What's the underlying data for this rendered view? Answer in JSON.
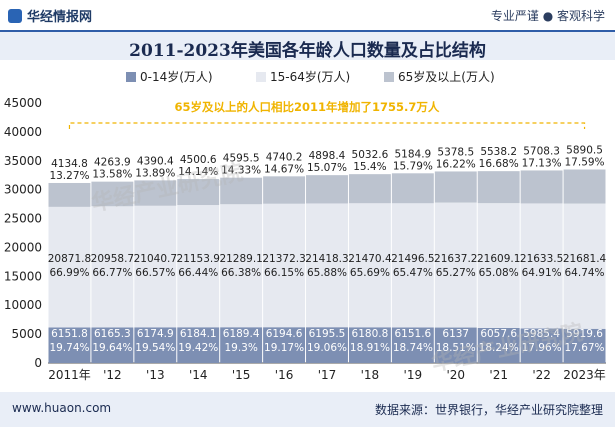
{
  "header": {
    "brand": "华经情报网",
    "slogan": "专业严谨 ● 客观科学"
  },
  "footer": {
    "site": "www.huaon.com",
    "source": "数据来源：世界银行，华经产业研究院整理"
  },
  "chart_data": {
    "type": "bar",
    "stacked": true,
    "title": "2011-2023年美国各年龄人口数量及占比结构",
    "categories": [
      "2011年",
      "'12",
      "'13",
      "'14",
      "'15",
      "'16",
      "'17",
      "'18",
      "'19",
      "'20",
      "'21",
      "'22",
      "2023年"
    ],
    "ylim": [
      0,
      45000
    ],
    "yticks": [
      0,
      5000,
      10000,
      15000,
      20000,
      25000,
      30000,
      35000,
      40000,
      45000
    ],
    "grid": false,
    "legend_position": "top",
    "series": [
      {
        "name": "0-14岁(万人)",
        "color": "#7d8fb3",
        "values": [
          6151.8,
          6165.3,
          6174.9,
          6184.1,
          6189.4,
          6194.6,
          6195.5,
          6180.8,
          6151.6,
          6137,
          6057.6,
          5985.4,
          5919.6
        ],
        "shares": [
          "19.74%",
          "19.64%",
          "19.54%",
          "19.42%",
          "19.3%",
          "19.17%",
          "19.06%",
          "18.91%",
          "18.74%",
          "18.51%",
          "18.24%",
          "17.96%",
          "17.67%"
        ]
      },
      {
        "name": "15-64岁(万人)",
        "color": "#e6e9f0",
        "values": [
          20871.8,
          20958.7,
          21040.7,
          21153.9,
          21289.1,
          21372.3,
          21418.3,
          21470.4,
          21496.5,
          21637.2,
          21609.1,
          21633.5,
          21681.4
        ],
        "shares": [
          "66.99%",
          "66.77%",
          "66.57%",
          "66.44%",
          "66.38%",
          "66.15%",
          "65.88%",
          "65.69%",
          "65.47%",
          "65.27%",
          "65.08%",
          "64.91%",
          "64.74%"
        ]
      },
      {
        "name": "65岁及以上(万人)",
        "color": "#bcc3cf",
        "values": [
          4134.8,
          4263.9,
          4390.4,
          4500.6,
          4595.5,
          4740.2,
          4898.4,
          5032.6,
          5184.9,
          5378.5,
          5538.2,
          5708.3,
          5890.5
        ],
        "shares": [
          "13.27%",
          "13.58%",
          "13.89%",
          "14.14%",
          "14.33%",
          "14.67%",
          "15.07%",
          "15.4%",
          "15.79%",
          "16.22%",
          "16.68%",
          "17.13%",
          "17.59%"
        ]
      }
    ],
    "annotation": "65岁及以上的人口相比2011年增加了1755.7万人",
    "annotation_color": "#f0b400"
  }
}
